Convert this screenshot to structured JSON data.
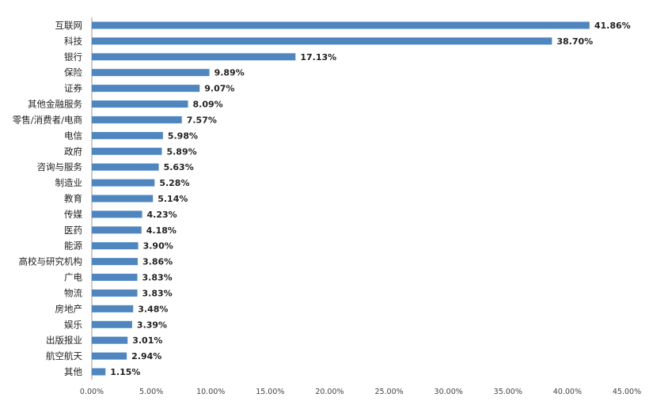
{
  "chart_data": {
    "type": "bar",
    "orientation": "horizontal",
    "categories": [
      "互联网",
      "科技",
      "银行",
      "保险",
      "证券",
      "其他金融服务",
      "零售/消费者/电商",
      "电信",
      "政府",
      "咨询与服务",
      "制造业",
      "教育",
      "传媒",
      "医药",
      "能源",
      "高校与研究机构",
      "广电",
      "物流",
      "房地产",
      "娱乐",
      "出版报业",
      "航空航天",
      "其他"
    ],
    "values": [
      41.86,
      38.7,
      17.13,
      9.89,
      9.07,
      8.09,
      7.57,
      5.98,
      5.89,
      5.63,
      5.28,
      5.14,
      4.23,
      4.18,
      3.9,
      3.86,
      3.83,
      3.83,
      3.48,
      3.39,
      3.01,
      2.94,
      1.15
    ],
    "value_labels": [
      "41.86%",
      "38.70%",
      "17.13%",
      "9.89%",
      "9.07%",
      "8.09%",
      "7.57%",
      "5.98%",
      "5.89%",
      "5.63%",
      "5.28%",
      "5.14%",
      "4.23%",
      "4.18%",
      "3.90%",
      "3.86%",
      "3.83%",
      "3.83%",
      "3.48%",
      "3.39%",
      "3.01%",
      "2.94%",
      "1.15%"
    ],
    "xlim": [
      0,
      45
    ],
    "x_ticks": [
      0,
      5,
      10,
      15,
      20,
      25,
      30,
      35,
      40,
      45
    ],
    "x_tick_labels": [
      "0.00%",
      "5.00%",
      "10.00%",
      "15.00%",
      "20.00%",
      "25.00%",
      "30.00%",
      "35.00%",
      "40.00%",
      "45.00%"
    ],
    "bar_color": "#4f86c0",
    "grid": false,
    "legend": false
  }
}
